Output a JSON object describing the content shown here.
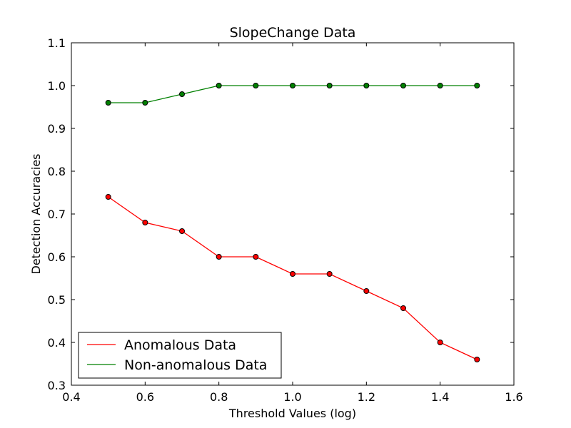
{
  "chart_data": {
    "type": "line",
    "title": "SlopeChange Data",
    "xlabel": "Threshold Values (log)",
    "ylabel": "Detection Accuracies",
    "xlim": [
      0.4,
      1.6
    ],
    "ylim": [
      0.3,
      1.1
    ],
    "xticks": [
      "0.4",
      "0.6",
      "0.8",
      "1.0",
      "1.2",
      "1.4",
      "1.6"
    ],
    "yticks": [
      "0.3",
      "0.4",
      "0.5",
      "0.6",
      "0.7",
      "0.8",
      "0.9",
      "1.0",
      "1.1"
    ],
    "grid": false,
    "legend_position": "lower-left",
    "x": [
      0.5,
      0.6,
      0.7,
      0.8,
      0.9,
      1.0,
      1.1,
      1.2,
      1.3,
      1.4,
      1.5
    ],
    "series": [
      {
        "name": "Anomalous Data",
        "color": "#ff0000",
        "values": [
          0.74,
          0.68,
          0.66,
          0.6,
          0.6,
          0.56,
          0.56,
          0.52,
          0.48,
          0.4,
          0.36
        ]
      },
      {
        "name": "Non-anomalous Data",
        "color": "#008000",
        "values": [
          0.96,
          0.96,
          0.98,
          1.0,
          1.0,
          1.0,
          1.0,
          1.0,
          1.0,
          1.0,
          1.0
        ]
      }
    ]
  }
}
